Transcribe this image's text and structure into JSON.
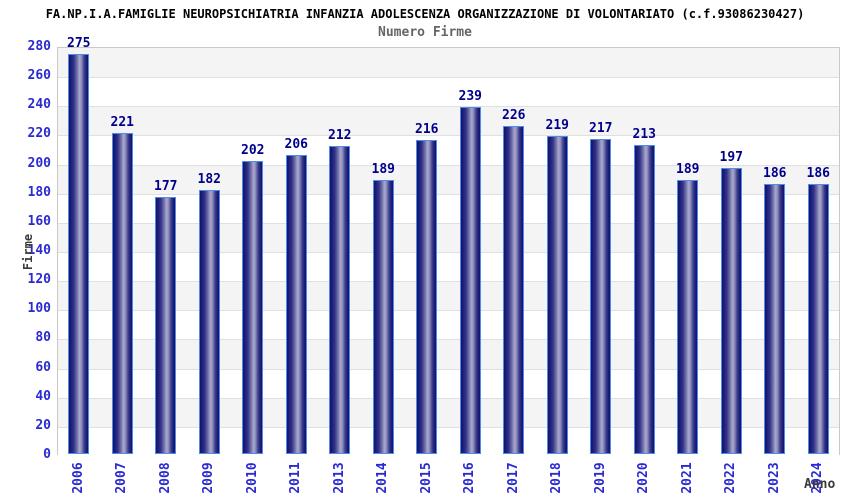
{
  "chart_data": {
    "type": "bar",
    "title": "FA.NP.I.A.FAMIGLIE NEUROPSICHIATRIA INFANZIA ADOLESCENZA ORGANIZZAZIONE DI VOLONTARIATO (c.f.93086230427)",
    "subtitle": "Numero Firme",
    "xlabel": "Anno",
    "ylabel": "Firme",
    "categories": [
      "2006",
      "2007",
      "2008",
      "2009",
      "2010",
      "2011",
      "2013",
      "2014",
      "2015",
      "2016",
      "2017",
      "2018",
      "2019",
      "2020",
      "2021",
      "2022",
      "2023",
      "2024"
    ],
    "values": [
      275,
      221,
      177,
      182,
      202,
      206,
      212,
      189,
      216,
      239,
      226,
      219,
      217,
      213,
      189,
      197,
      186,
      186
    ],
    "ylim": [
      0,
      280
    ],
    "ytick_step": 20,
    "grid": "horizontal-gridlines-with-alternating-bands",
    "legend": "none",
    "colors": {
      "bar_edge_dark": "#131366",
      "bar_center_light": "#a9a9cd",
      "bar_border": "#4d8bee",
      "value_label": "#00008b",
      "tick_label": "#2a2ad2",
      "axis_label": "#3a3a3a",
      "title": "#000000",
      "subtitle": "#666666",
      "band_gray": "#f4f4f4",
      "band_white": "#ffffff",
      "gridline": "#e0e0e0",
      "plot_border": "#c9c9c9"
    }
  }
}
